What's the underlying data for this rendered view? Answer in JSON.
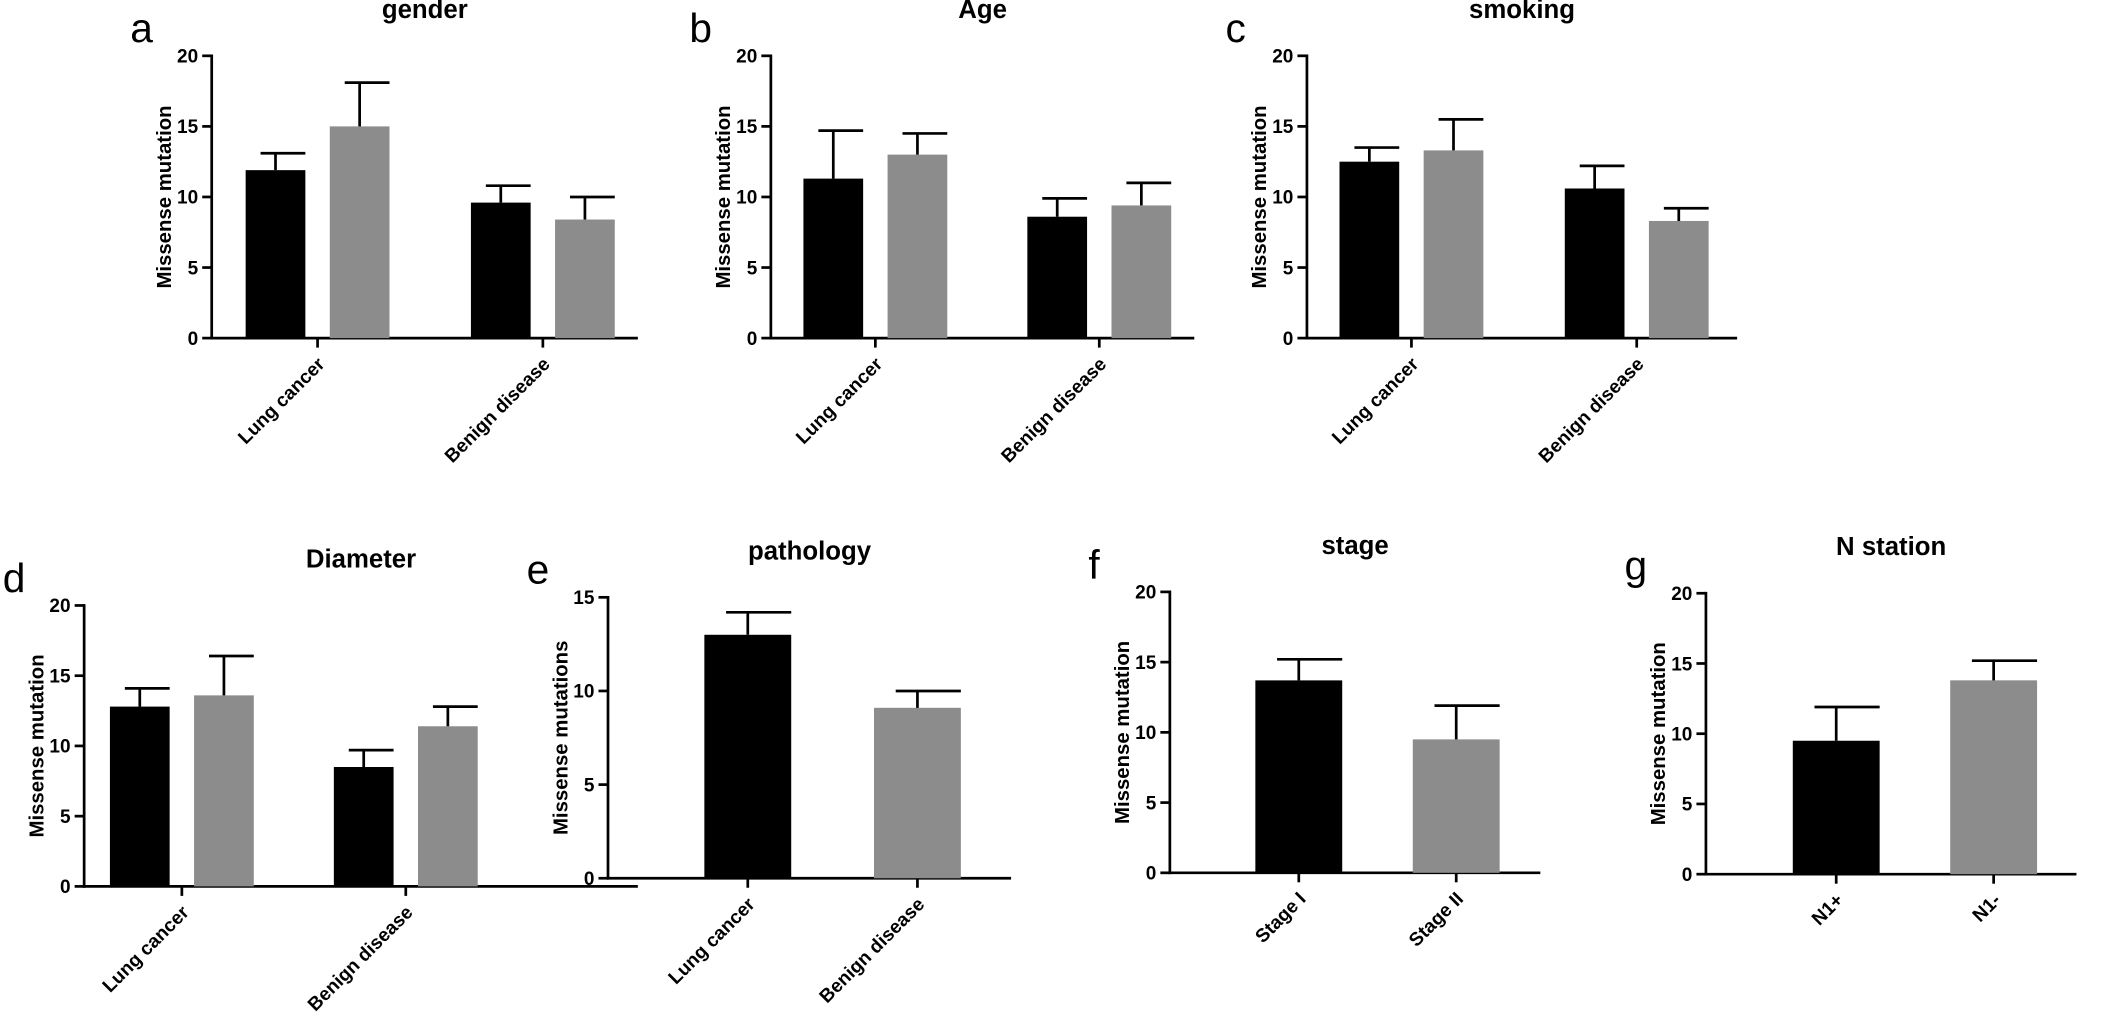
{
  "chart_data": [
    {
      "type": "bar",
      "panel": "a",
      "title": "gender",
      "ylabel": "Missense mutation",
      "categories": [
        "Lung cancer",
        "Benign disease"
      ],
      "series": [
        {
          "color": "#000000",
          "values": [
            11.9,
            9.6
          ],
          "errors": [
            1.2,
            1.2
          ]
        },
        {
          "color": "#8c8c8c",
          "values": [
            15.0,
            8.4
          ],
          "errors": [
            3.1,
            1.6
          ]
        }
      ],
      "ylim": [
        0,
        20
      ],
      "yticks": [
        0,
        5,
        10,
        15,
        20
      ]
    },
    {
      "type": "bar",
      "panel": "b",
      "title": "Age",
      "ylabel": "Missense mutation",
      "categories": [
        "Lung cancer",
        "Benign disease"
      ],
      "series": [
        {
          "color": "#000000",
          "values": [
            11.3,
            8.6
          ],
          "errors": [
            3.4,
            1.3
          ]
        },
        {
          "color": "#8c8c8c",
          "values": [
            13.0,
            9.4
          ],
          "errors": [
            1.5,
            1.6
          ]
        }
      ],
      "ylim": [
        0,
        20
      ],
      "yticks": [
        0,
        5,
        10,
        15,
        20
      ]
    },
    {
      "type": "bar",
      "panel": "c",
      "title": "smoking",
      "ylabel": "Missense mutation",
      "categories": [
        "Lung cancer",
        "Benign disease"
      ],
      "series": [
        {
          "color": "#000000",
          "values": [
            12.5,
            10.6
          ],
          "errors": [
            1.0,
            1.6
          ]
        },
        {
          "color": "#8c8c8c",
          "values": [
            13.3,
            8.3
          ],
          "errors": [
            2.2,
            0.9
          ]
        }
      ],
      "ylim": [
        0,
        20
      ],
      "yticks": [
        0,
        5,
        10,
        15,
        20
      ]
    },
    {
      "type": "bar",
      "panel": "d",
      "title": "Diameter",
      "ylabel": "Missense mutation",
      "categories": [
        "Lung cancer",
        "Benign disease"
      ],
      "series": [
        {
          "color": "#000000",
          "values": [
            12.8,
            8.5
          ],
          "errors": [
            1.3,
            1.2
          ]
        },
        {
          "color": "#8c8c8c",
          "values": [
            13.6,
            11.4
          ],
          "errors": [
            2.8,
            1.4
          ]
        }
      ],
      "ylim": [
        0,
        20
      ],
      "yticks": [
        0,
        5,
        10,
        15,
        20
      ]
    },
    {
      "type": "bar",
      "panel": "e",
      "title": "pathology",
      "ylabel": "Missense mutations",
      "categories": [
        "Lung cancer",
        "Benign disease"
      ],
      "values": [
        13.0,
        9.1
      ],
      "errors": [
        1.2,
        0.9
      ],
      "colors": [
        "#000000",
        "#8c8c8c"
      ],
      "ylim": [
        0,
        15
      ],
      "yticks": [
        0,
        5,
        10,
        15
      ]
    },
    {
      "type": "bar",
      "panel": "f",
      "title": "stage",
      "ylabel": "Missense mutation",
      "categories": [
        "Stage I",
        "Stage II"
      ],
      "values": [
        13.7,
        9.5
      ],
      "errors": [
        1.5,
        2.4
      ],
      "colors": [
        "#000000",
        "#8c8c8c"
      ],
      "ylim": [
        0,
        20
      ],
      "yticks": [
        0,
        5,
        10,
        15,
        20
      ]
    },
    {
      "type": "bar",
      "panel": "g",
      "title": "N station",
      "ylabel": "Missense mutation",
      "categories": [
        "N1+",
        "N1-"
      ],
      "values": [
        9.5,
        13.8
      ],
      "errors": [
        2.4,
        1.4
      ],
      "colors": [
        "#000000",
        "#8c8c8c"
      ],
      "ylim": [
        0,
        20
      ],
      "yticks": [
        0,
        5,
        10,
        15,
        20
      ]
    }
  ]
}
